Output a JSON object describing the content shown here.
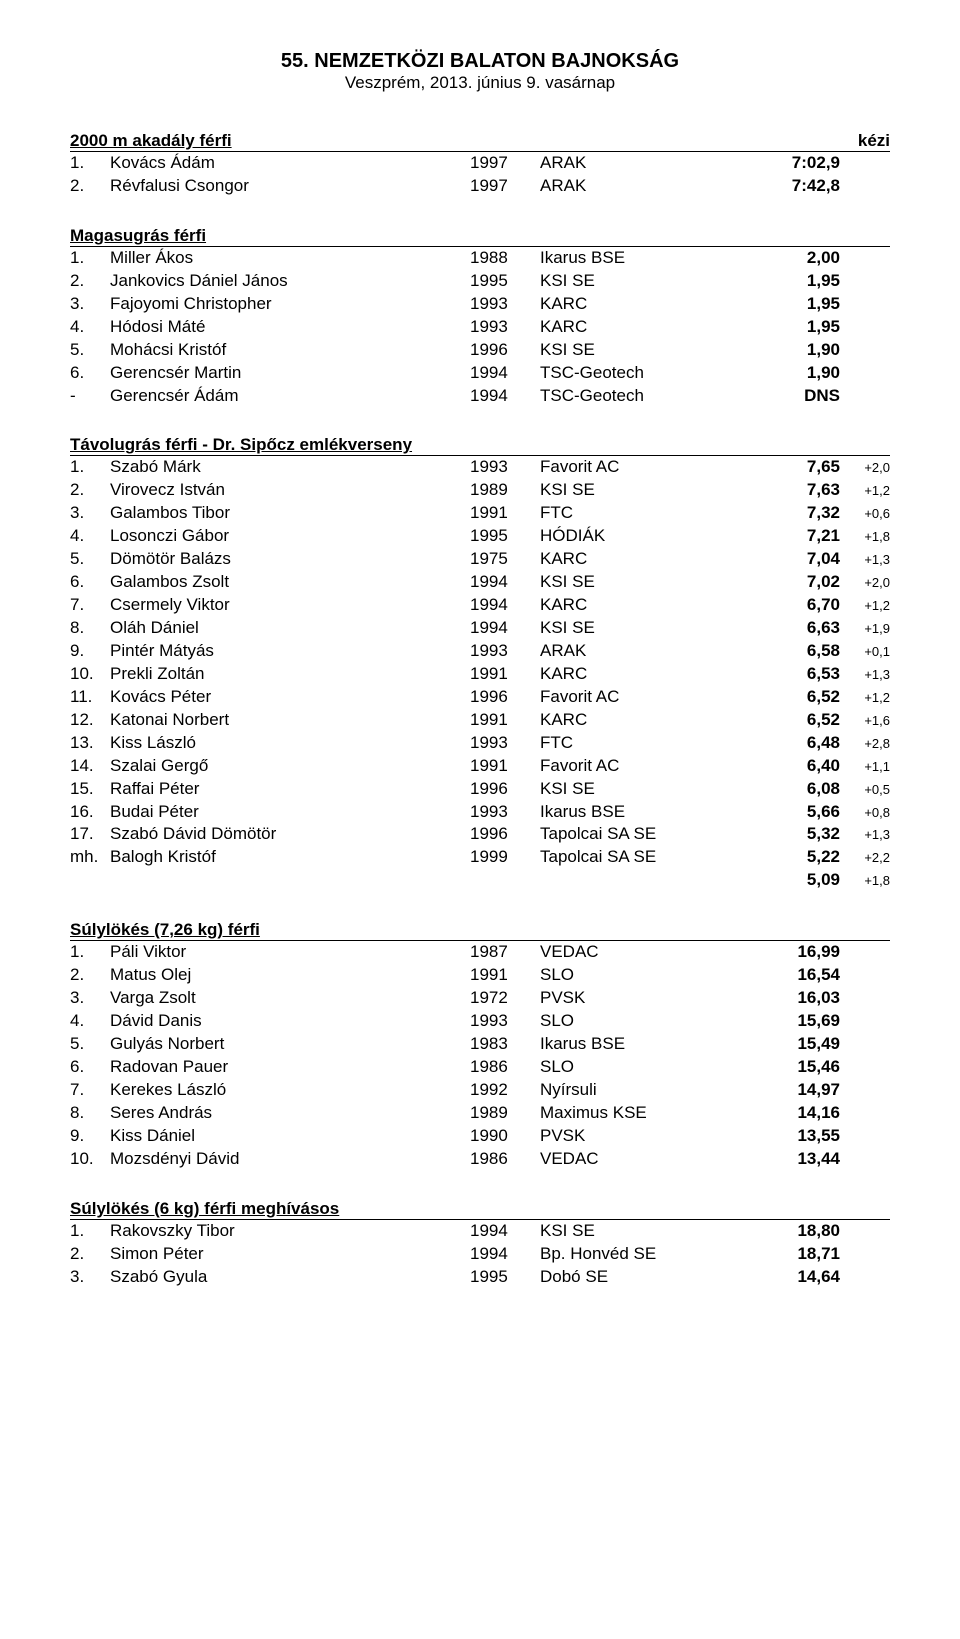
{
  "header": {
    "title": "55. NEMZETKÖZI BALATON BAJNOKSÁG",
    "subtitle": "Veszprém, 2013. június 9. vasárnap"
  },
  "sections": [
    {
      "title": "2000 m akadály férfi",
      "timing": "kézi",
      "rows": [
        {
          "rank": "1.",
          "name": "Kovács Ádám",
          "year": "1997",
          "club": "ARAK",
          "result": "7:02,9"
        },
        {
          "rank": "2.",
          "name": "Révfalusi Csongor",
          "year": "1997",
          "club": "ARAK",
          "result": "7:42,8"
        }
      ]
    },
    {
      "title": "Magasugrás férfi",
      "rows": [
        {
          "rank": "1.",
          "name": "Miller Ákos",
          "year": "1988",
          "club": "Ikarus BSE",
          "result": "2,00"
        },
        {
          "rank": "2.",
          "name": "Jankovics Dániel János",
          "year": "1995",
          "club": "KSI SE",
          "result": "1,95"
        },
        {
          "rank": "3.",
          "name": "Fajoyomi Christopher",
          "year": "1993",
          "club": "KARC",
          "result": "1,95"
        },
        {
          "rank": "4.",
          "name": "Hódosi Máté",
          "year": "1993",
          "club": "KARC",
          "result": "1,95"
        },
        {
          "rank": "5.",
          "name": "Mohácsi Kristóf",
          "year": "1996",
          "club": "KSI SE",
          "result": "1,90"
        },
        {
          "rank": "6.",
          "name": "Gerencsér Martin",
          "year": "1994",
          "club": "TSC-Geotech",
          "result": "1,90"
        },
        {
          "rank": "-",
          "name": "Gerencsér Ádám",
          "year": "1994",
          "club": "TSC-Geotech",
          "result": "DNS"
        }
      ]
    },
    {
      "title": "Távolugrás férfi - Dr. Sipőcz emlékverseny",
      "rows": [
        {
          "rank": "1.",
          "name": "Szabó Márk",
          "year": "1993",
          "club": "Favorit AC",
          "result": "7,65",
          "wind": "+2,0"
        },
        {
          "rank": "2.",
          "name": "Virovecz István",
          "year": "1989",
          "club": "KSI SE",
          "result": "7,63",
          "wind": "+1,2"
        },
        {
          "rank": "3.",
          "name": "Galambos Tibor",
          "year": "1991",
          "club": "FTC",
          "result": "7,32",
          "wind": "+0,6"
        },
        {
          "rank": "4.",
          "name": "Losonczi Gábor",
          "year": "1995",
          "club": "HÓDIÁK",
          "result": "7,21",
          "wind": "+1,8"
        },
        {
          "rank": "5.",
          "name": "Dömötör Balázs",
          "year": "1975",
          "club": "KARC",
          "result": "7,04",
          "wind": "+1,3"
        },
        {
          "rank": "6.",
          "name": "Galambos Zsolt",
          "year": "1994",
          "club": "KSI SE",
          "result": "7,02",
          "wind": "+2,0"
        },
        {
          "rank": "7.",
          "name": "Csermely Viktor",
          "year": "1994",
          "club": "KARC",
          "result": "6,70",
          "wind": "+1,2"
        },
        {
          "rank": "8.",
          "name": "Oláh Dániel",
          "year": "1994",
          "club": "KSI SE",
          "result": "6,63",
          "wind": "+1,9"
        },
        {
          "rank": "9.",
          "name": "Pintér Mátyás",
          "year": "1993",
          "club": "ARAK",
          "result": "6,58",
          "wind": "+0,1"
        },
        {
          "rank": "10.",
          "name": "Prekli Zoltán",
          "year": "1991",
          "club": "KARC",
          "result": "6,53",
          "wind": "+1,3"
        },
        {
          "rank": "11.",
          "name": "Kovács Péter",
          "year": "1996",
          "club": "Favorit AC",
          "result": "6,52",
          "wind": "+1,2"
        },
        {
          "rank": "12.",
          "name": "Katonai Norbert",
          "year": "1991",
          "club": "KARC",
          "result": "6,52",
          "wind": "+1,6"
        },
        {
          "rank": "13.",
          "name": "Kiss László",
          "year": "1993",
          "club": "FTC",
          "result": "6,48",
          "wind": "+2,8"
        },
        {
          "rank": "14.",
          "name": "Szalai Gergő",
          "year": "1991",
          "club": "Favorit AC",
          "result": "6,40",
          "wind": "+1,1"
        },
        {
          "rank": "15.",
          "name": "Raffai Péter",
          "year": "1996",
          "club": "KSI SE",
          "result": "6,08",
          "wind": "+0,5"
        },
        {
          "rank": "16.",
          "name": "Budai Péter",
          "year": "1993",
          "club": "Ikarus BSE",
          "result": "5,66",
          "wind": "+0,8"
        },
        {
          "rank": "17.",
          "name": "Szabó Dávid Dömötör",
          "year": "1996",
          "club": "Tapolcai SA SE",
          "result": "5,32",
          "wind": "+1,3"
        },
        {
          "rank": "mh.",
          "name": "Balogh Kristóf",
          "year": "1999",
          "club": "Tapolcai SA SE",
          "result": "5,22",
          "wind": "+2,2"
        }
      ],
      "extra": {
        "result": "5,09",
        "wind": "+1,8"
      }
    },
    {
      "title": "Súlylökés (7,26 kg) férfi",
      "rows": [
        {
          "rank": "1.",
          "name": "Páli Viktor",
          "year": "1987",
          "club": "VEDAC",
          "result": "16,99"
        },
        {
          "rank": "2.",
          "name": "Matus Olej",
          "year": "1991",
          "club": "SLO",
          "result": "16,54"
        },
        {
          "rank": "3.",
          "name": "Varga Zsolt",
          "year": "1972",
          "club": "PVSK",
          "result": "16,03"
        },
        {
          "rank": "4.",
          "name": "Dávid Danis",
          "year": "1993",
          "club": "SLO",
          "result": "15,69"
        },
        {
          "rank": "5.",
          "name": "Gulyás Norbert",
          "year": "1983",
          "club": "Ikarus BSE",
          "result": "15,49"
        },
        {
          "rank": "6.",
          "name": "Radovan Pauer",
          "year": "1986",
          "club": "SLO",
          "result": "15,46"
        },
        {
          "rank": "7.",
          "name": "Kerekes László",
          "year": "1992",
          "club": "Nyírsuli",
          "result": "14,97"
        },
        {
          "rank": "8.",
          "name": "Seres András",
          "year": "1989",
          "club": "Maximus KSE",
          "result": "14,16"
        },
        {
          "rank": "9.",
          "name": "Kiss Dániel",
          "year": "1990",
          "club": "PVSK",
          "result": "13,55"
        },
        {
          "rank": "10.",
          "name": "Mozsdényi Dávid",
          "year": "1986",
          "club": "VEDAC",
          "result": "13,44"
        }
      ]
    },
    {
      "title": "Súlylökés (6 kg) férfi meghívásos",
      "rows": [
        {
          "rank": "1.",
          "name": "Rakovszky Tibor",
          "year": "1994",
          "club": "KSI SE",
          "result": "18,80"
        },
        {
          "rank": "2.",
          "name": "Simon Péter",
          "year": "1994",
          "club": "Bp. Honvéd SE",
          "result": "18,71"
        },
        {
          "rank": "3.",
          "name": "Szabó Gyula",
          "year": "1995",
          "club": "Dobó SE",
          "result": "14,64"
        }
      ]
    }
  ]
}
